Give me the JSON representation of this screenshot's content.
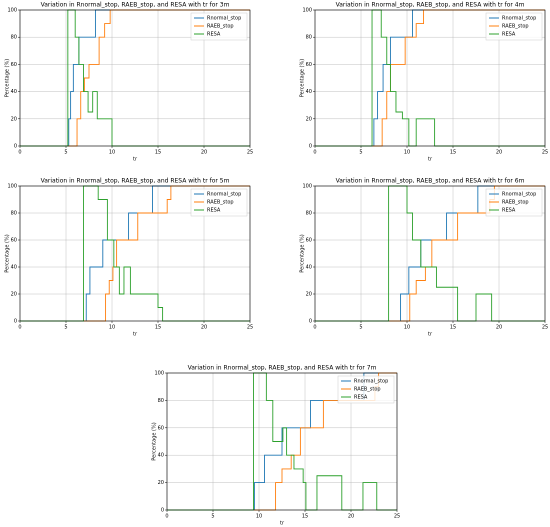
{
  "chart_data": [
    {
      "type": "line",
      "title": "Variation in Rnormal_stop, RAEB_stop, and RESA with tr for 3m",
      "xlabel": "tr",
      "ylabel": "Percentage (%)",
      "xlim": [
        0,
        25
      ],
      "ylim": [
        0,
        100
      ],
      "xticks": [
        0,
        5,
        10,
        15,
        20,
        25
      ],
      "yticks": [
        0,
        20,
        40,
        60,
        80,
        100
      ],
      "grid": true,
      "legend": "upper right",
      "series": [
        {
          "name": "Rnormal_stop",
          "color": "#1f77b4",
          "x": [
            0,
            5.3,
            5.5,
            5.8,
            6.4,
            8.2,
            25
          ],
          "values": [
            0,
            20,
            40,
            60,
            80,
            100,
            100
          ]
        },
        {
          "name": "RAEB_stop",
          "color": "#ff7f0e",
          "x": [
            0,
            6.2,
            6.6,
            7.0,
            7.5,
            8.6,
            9.2,
            9.8,
            25
          ],
          "values": [
            0,
            20,
            40,
            50,
            60,
            80,
            90,
            100,
            100
          ]
        },
        {
          "name": "RESA",
          "color": "#2ca02c",
          "x": [
            0,
            5.2,
            6.0,
            6.4,
            6.9,
            7.4,
            7.9,
            8.4,
            9.6,
            10.0,
            25
          ],
          "values": [
            0,
            100,
            80,
            60,
            40,
            25,
            40,
            20,
            20,
            0,
            0
          ]
        }
      ]
    },
    {
      "type": "line",
      "title": "Variation in Rnormal_stop, RAEB_stop, and RESA with tr for 4m",
      "xlabel": "tr",
      "ylabel": "Percentage (%)",
      "xlim": [
        0,
        25
      ],
      "ylim": [
        0,
        100
      ],
      "xticks": [
        0,
        5,
        10,
        15,
        20,
        25
      ],
      "yticks": [
        0,
        20,
        40,
        60,
        80,
        100
      ],
      "grid": true,
      "legend": "upper right",
      "series": [
        {
          "name": "Rnormal_stop",
          "color": "#1f77b4",
          "x": [
            0,
            6.4,
            6.8,
            7.4,
            8.2,
            10.6,
            25
          ],
          "values": [
            0,
            20,
            40,
            60,
            80,
            100,
            100
          ]
        },
        {
          "name": "RAEB_stop",
          "color": "#ff7f0e",
          "x": [
            0,
            7.3,
            7.8,
            8.2,
            8.8,
            9.8,
            10.5,
            11.0,
            11.8,
            25
          ],
          "values": [
            0,
            20,
            40,
            60,
            60,
            80,
            80,
            90,
            100,
            100
          ]
        },
        {
          "name": "RESA",
          "color": "#2ca02c",
          "x": [
            0,
            6.2,
            7.2,
            7.8,
            8.2,
            8.8,
            9.5,
            10.2,
            11.0,
            13.0,
            25
          ],
          "values": [
            0,
            100,
            80,
            60,
            40,
            25,
            20,
            0,
            20,
            0,
            0
          ]
        }
      ]
    },
    {
      "type": "line",
      "title": "Variation in Rnormal_stop, RAEB_stop, and RESA with tr for 5m",
      "xlabel": "tr",
      "ylabel": "Percentage (%)",
      "xlim": [
        0,
        25
      ],
      "ylim": [
        0,
        100
      ],
      "xticks": [
        0,
        5,
        10,
        15,
        20,
        25
      ],
      "yticks": [
        0,
        20,
        40,
        60,
        80,
        100
      ],
      "grid": true,
      "legend": "upper right",
      "series": [
        {
          "name": "Rnormal_stop",
          "color": "#1f77b4",
          "x": [
            0,
            7.2,
            7.6,
            9.0,
            11.8,
            14.4,
            25
          ],
          "values": [
            0,
            20,
            40,
            60,
            80,
            100,
            100
          ]
        },
        {
          "name": "RAEB_stop",
          "color": "#ff7f0e",
          "x": [
            0,
            9.3,
            9.7,
            10.1,
            10.5,
            12.8,
            16.0,
            16.4,
            25
          ],
          "values": [
            0,
            20,
            30,
            40,
            60,
            80,
            90,
            100,
            100
          ]
        },
        {
          "name": "RESA",
          "color": "#2ca02c",
          "x": [
            0,
            6.9,
            8.5,
            9.5,
            10.2,
            10.8,
            11.3,
            12.0,
            14.5,
            15.0,
            15.5,
            25
          ],
          "values": [
            0,
            100,
            90,
            60,
            40,
            20,
            40,
            20,
            20,
            10,
            0,
            0
          ]
        }
      ]
    },
    {
      "type": "line",
      "title": "Variation in Rnormal_stop, RAEB_stop, and RESA with tr for 6m",
      "xlabel": "tr",
      "ylabel": "Percentage (%)",
      "xlim": [
        0,
        25
      ],
      "ylim": [
        0,
        100
      ],
      "xticks": [
        0,
        5,
        10,
        15,
        20,
        25
      ],
      "yticks": [
        0,
        20,
        40,
        60,
        80,
        100
      ],
      "grid": true,
      "legend": "upper right",
      "series": [
        {
          "name": "Rnormal_stop",
          "color": "#1f77b4",
          "x": [
            0,
            9.3,
            10.2,
            11.5,
            14.3,
            17.7,
            25
          ],
          "values": [
            0,
            20,
            40,
            60,
            80,
            100,
            100
          ]
        },
        {
          "name": "RAEB_stop",
          "color": "#ff7f0e",
          "x": [
            0,
            10.3,
            11.0,
            12.0,
            12.7,
            15.5,
            19.0,
            19.5,
            25
          ],
          "values": [
            0,
            20,
            30,
            40,
            60,
            80,
            90,
            100,
            100
          ]
        },
        {
          "name": "RESA",
          "color": "#2ca02c",
          "x": [
            0,
            8.0,
            10.0,
            10.6,
            11.5,
            13.2,
            15.5,
            17.5,
            19.2,
            25
          ],
          "values": [
            0,
            100,
            80,
            60,
            40,
            25,
            0,
            20,
            0,
            0
          ]
        }
      ]
    },
    {
      "type": "line",
      "title": "Variation in Rnormal_stop, RAEB_stop, and RESA with tr for 7m",
      "xlabel": "tr",
      "ylabel": "Percentage (%)",
      "xlim": [
        0,
        25
      ],
      "ylim": [
        0,
        100
      ],
      "xticks": [
        0,
        5,
        10,
        15,
        20,
        25
      ],
      "yticks": [
        0,
        20,
        40,
        60,
        80,
        100
      ],
      "grid": true,
      "legend": "upper right",
      "series": [
        {
          "name": "Rnormal_stop",
          "color": "#1f77b4",
          "x": [
            0,
            9.5,
            10.6,
            12.5,
            15.6,
            21.4,
            25
          ],
          "values": [
            0,
            20,
            40,
            60,
            80,
            100,
            100
          ]
        },
        {
          "name": "RAEB_stop",
          "color": "#ff7f0e",
          "x": [
            0,
            11.8,
            12.5,
            13.5,
            14.5,
            17.0,
            22.6,
            23.0,
            25
          ],
          "values": [
            0,
            20,
            30,
            40,
            60,
            80,
            90,
            100,
            100
          ]
        },
        {
          "name": "RESA",
          "color": "#2ca02c",
          "x": [
            0,
            9.4,
            10.8,
            11.5,
            12.6,
            13.0,
            13.8,
            14.8,
            15.1,
            16.3,
            19.0,
            21.3,
            22.8,
            25
          ],
          "values": [
            0,
            100,
            80,
            50,
            60,
            40,
            30,
            20,
            0,
            25,
            0,
            20,
            0,
            0
          ]
        }
      ]
    }
  ]
}
